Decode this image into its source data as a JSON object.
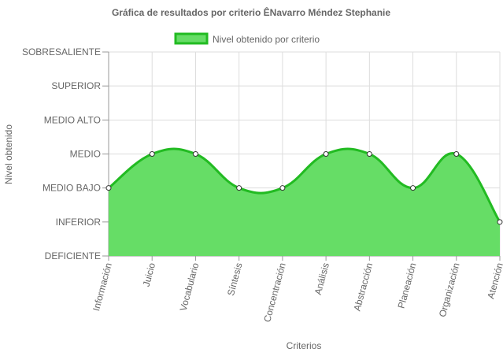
{
  "chart_data": {
    "type": "area",
    "title": "Gráfica de resultados por criterio ÊNavarro Méndez Stephanie",
    "xlabel": "Criterios",
    "ylabel": "Nivel obtenido",
    "legend_position": "top-center",
    "grid": true,
    "y_categories": [
      "DEFICIENTE",
      "INFERIOR",
      "MEDIO BAJO",
      "MEDIO",
      "MEDIO ALTO",
      "SUPERIOR",
      "SOBRESALIENTE"
    ],
    "categories": [
      "Información",
      "Juicio",
      "Vocabulario",
      "Síntesis",
      "Concentración",
      "Análisis",
      "Abstracción",
      "Planeación",
      "Organización",
      "Atención"
    ],
    "series": [
      {
        "name": "Nivel obtenido por criterio",
        "values": [
          2,
          3,
          3,
          2,
          2,
          3,
          3,
          2,
          3,
          1
        ],
        "fill_color": "#66dd66",
        "line_color": "#22bb22"
      }
    ]
  }
}
